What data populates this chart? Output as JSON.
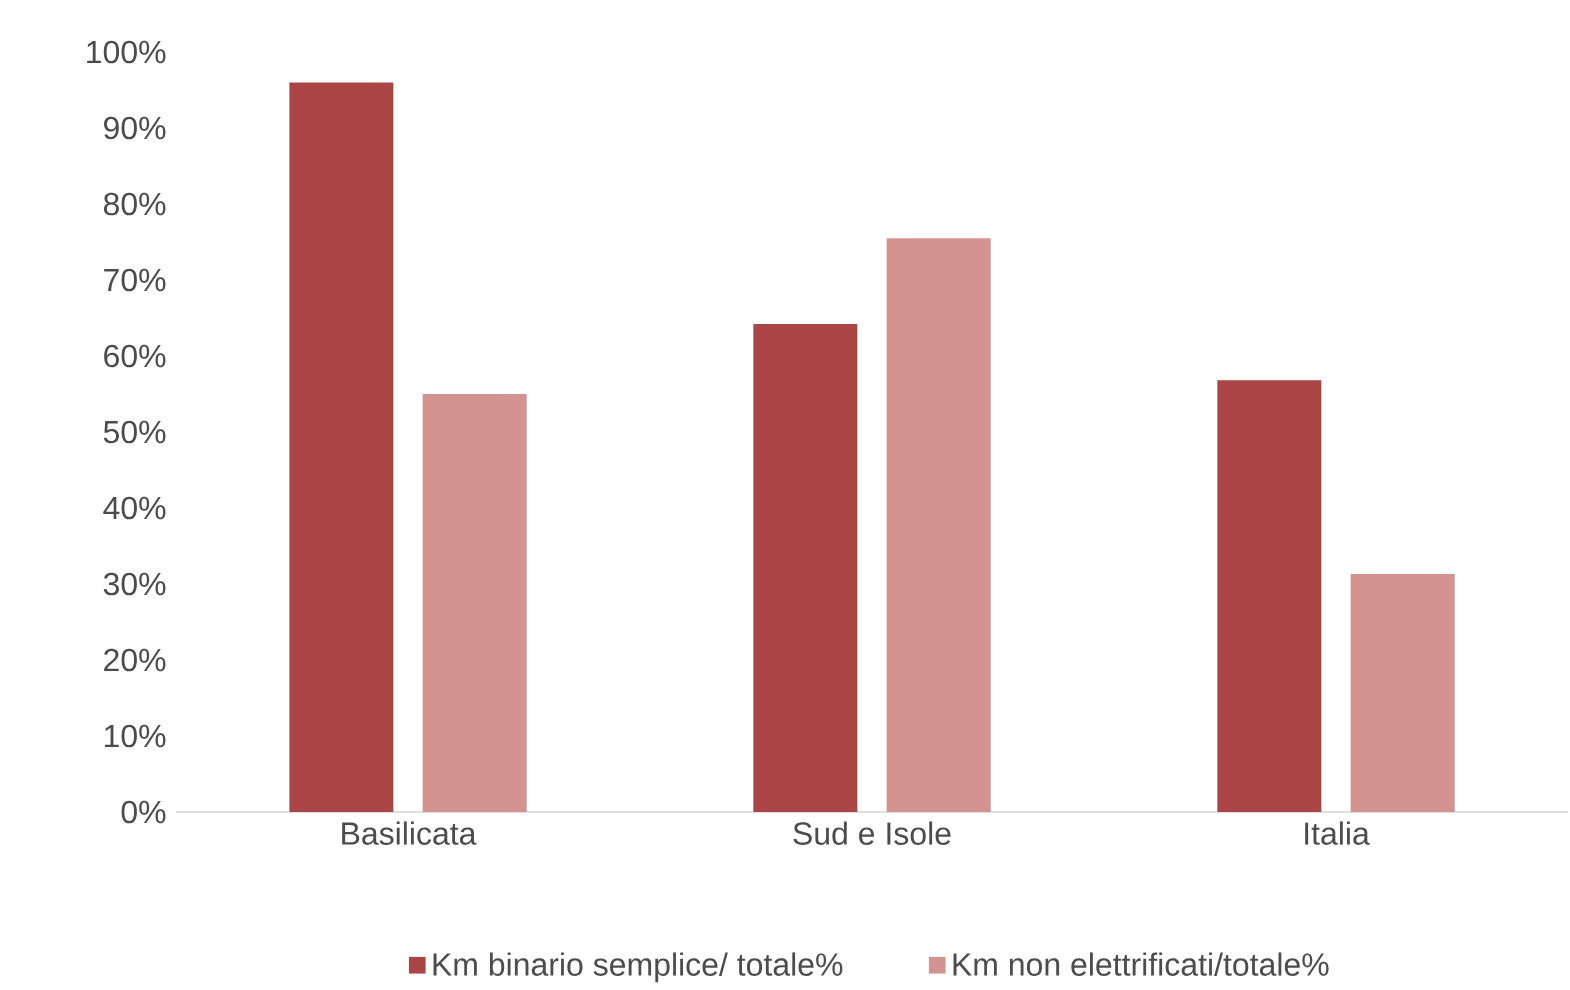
{
  "chart_data": {
    "type": "bar",
    "categories": [
      "Basilicata",
      "Sud e Isole",
      "Italia"
    ],
    "series": [
      {
        "name": "Km binario semplice/ totale%",
        "color": "#a94645",
        "values": [
          96,
          64.2,
          56.8
        ]
      },
      {
        "name": "Km non elettrificati/totale%",
        "color": "#d39391",
        "values": [
          55,
          75.5,
          31.3
        ]
      }
    ],
    "ylim": [
      0,
      100
    ],
    "yticks": [
      {
        "value": 0,
        "label": "0%"
      },
      {
        "value": 10,
        "label": "10%"
      },
      {
        "value": 20,
        "label": "20%"
      },
      {
        "value": 30,
        "label": "30%"
      },
      {
        "value": 40,
        "label": "40%"
      },
      {
        "value": 50,
        "label": "50%"
      },
      {
        "value": 60,
        "label": "60%"
      },
      {
        "value": 70,
        "label": "70%"
      },
      {
        "value": 80,
        "label": "80%"
      },
      {
        "value": 90,
        "label": "90%"
      },
      {
        "value": 100,
        "label": "100%"
      }
    ],
    "grid": false,
    "legend": "bottom"
  }
}
